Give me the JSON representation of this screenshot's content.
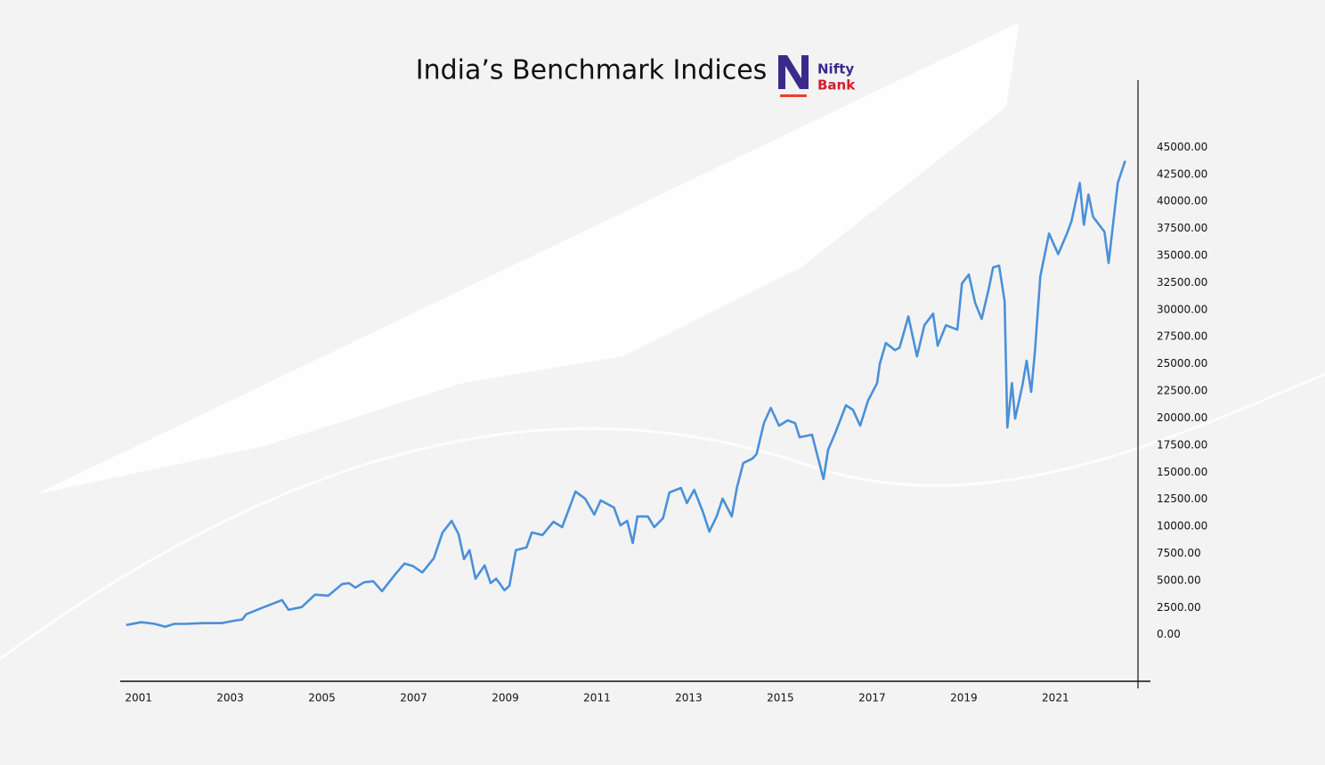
{
  "chart_data": {
    "type": "line",
    "title": "India’s Benchmark Indices",
    "annotations": [
      "Nifty",
      "Bank"
    ],
    "color": "#4a90d9",
    "grid": false,
    "x": [
      2000.73,
      2001.06,
      2001.35,
      2001.58,
      2001.78,
      2002.03,
      2002.42,
      2002.81,
      2003.1,
      2003.26,
      2003.35,
      2003.68,
      2003.88,
      2004.13,
      2004.27,
      2004.56,
      2004.85,
      2005.14,
      2005.44,
      2005.59,
      2005.73,
      2005.92,
      2006.12,
      2006.31,
      2006.6,
      2006.8,
      2006.99,
      2007.19,
      2007.44,
      2007.63,
      2007.83,
      2007.98,
      2008.1,
      2008.22,
      2008.35,
      2008.55,
      2008.68,
      2008.8,
      2008.98,
      2009.09,
      2009.23,
      2009.46,
      2009.58,
      2009.81,
      2010.05,
      2010.24,
      2010.53,
      2010.74,
      2010.94,
      2011.08,
      2011.37,
      2011.51,
      2011.66,
      2011.78,
      2011.88,
      2012.11,
      2012.25,
      2012.44,
      2012.58,
      2012.83,
      2012.96,
      2013.12,
      2013.31,
      2013.45,
      2013.61,
      2013.74,
      2013.94,
      2014.05,
      2014.19,
      2014.39,
      2014.48,
      2014.64,
      2014.79,
      2014.97,
      2015.16,
      2015.32,
      2015.42,
      2015.69,
      2015.81,
      2015.94,
      2016.04,
      2016.19,
      2016.43,
      2016.58,
      2016.74,
      2016.91,
      2017.11,
      2017.17,
      2017.3,
      2017.5,
      2017.6,
      2017.79,
      2017.98,
      2018.14,
      2018.33,
      2018.43,
      2018.61,
      2018.86,
      2018.96,
      2019.11,
      2019.25,
      2019.39,
      2019.54,
      2019.64,
      2019.77,
      2019.89,
      2019.95,
      2020.05,
      2020.12,
      2020.28,
      2020.37,
      2020.47,
      2020.55,
      2020.67,
      2020.86,
      2021.06,
      2021.25,
      2021.35,
      2021.53,
      2021.62,
      2021.72,
      2021.82,
      2022.07,
      2022.16,
      2022.36,
      2022.52
    ],
    "values": [
      900,
      1150,
      1000,
      740,
      1000,
      1000,
      1070,
      1070,
      1300,
      1400,
      1890,
      2460,
      2790,
      3200,
      2300,
      2550,
      3700,
      3600,
      4680,
      4760,
      4350,
      4840,
      4930,
      4020,
      5580,
      6570,
      6320,
      5750,
      7060,
      9440,
      10510,
      9280,
      6980,
      7800,
      5170,
      6400,
      4760,
      5170,
      4100,
      4520,
      7800,
      8050,
      9440,
      9200,
      10430,
      9930,
      13220,
      12560,
      11080,
      12400,
      11740,
      10100,
      10510,
      8460,
      10920,
      10920,
      9930,
      10760,
      13140,
      13550,
      12150,
      13380,
      11330,
      9520,
      10920,
      12560,
      10920,
      13550,
      15850,
      16260,
      16670,
      19540,
      20940,
      19300,
      19790,
      19540,
      18230,
      18470,
      16500,
      14370,
      17080,
      18560,
      21180,
      20770,
      19300,
      21590,
      23230,
      25040,
      26930,
      26270,
      26520,
      29390,
      25700,
      28570,
      29640,
      26680,
      28570,
      28160,
      32430,
      33250,
      30620,
      29150,
      31860,
      33910,
      34070,
      30790,
      19130,
      23230,
      19950,
      23070,
      25290,
      22410,
      26110,
      33090,
      37030,
      35140,
      37030,
      38180,
      41710,
      37850,
      40640,
      38590,
      37190,
      34320,
      41710,
      43760
    ],
    "xlim": [
      2000.6,
      2022.8
    ],
    "xticks": [
      2001,
      2003,
      2005,
      2007,
      2009,
      2011,
      2013,
      2015,
      2017,
      2019,
      2021
    ],
    "ylim": [
      -4300,
      51200
    ],
    "yticks": [
      {
        "value": 0,
        "label": "0.00"
      },
      {
        "value": 2500,
        "label": "2500.00"
      },
      {
        "value": 5000,
        "label": "5000.00"
      },
      {
        "value": 7500,
        "label": "7500.00"
      },
      {
        "value": 10000,
        "label": "10000.00"
      },
      {
        "value": 12500,
        "label": "12500.00"
      },
      {
        "value": 15000,
        "label": "15000.00"
      },
      {
        "value": 17500,
        "label": "17500.00"
      },
      {
        "value": 20000,
        "label": "20000.00"
      },
      {
        "value": 22500,
        "label": "22500.00"
      },
      {
        "value": 25000,
        "label": "25000.00"
      },
      {
        "value": 27500,
        "label": "27500.00"
      },
      {
        "value": 30000,
        "label": "30000.00"
      },
      {
        "value": 32500,
        "label": "32500.00"
      },
      {
        "value": 35000,
        "label": "35000.00"
      },
      {
        "value": 37500,
        "label": "37500.00"
      },
      {
        "value": 40000,
        "label": "40000.00"
      },
      {
        "value": 42500,
        "label": "42500.00"
      },
      {
        "value": 45000,
        "label": "45000.00"
      }
    ]
  }
}
